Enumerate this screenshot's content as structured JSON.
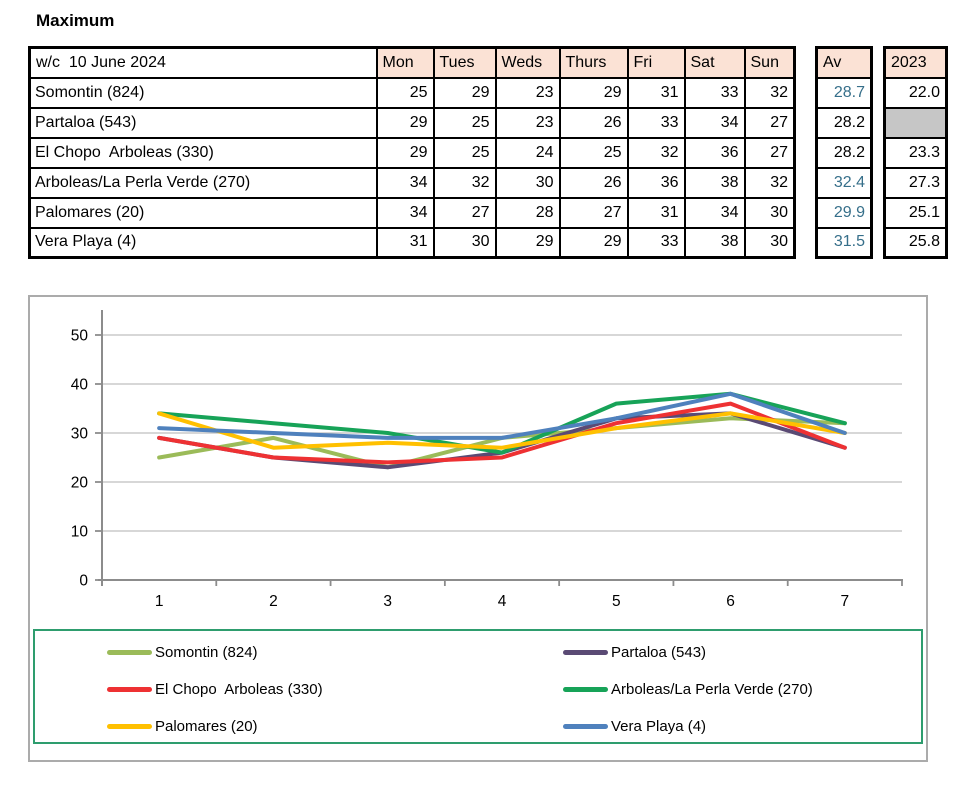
{
  "title": "Maximum",
  "table": {
    "header": {
      "week_label": "w/c  10 June 2024",
      "days": [
        "Mon",
        "Tues",
        "Weds",
        "Thurs",
        "Fri",
        "Sat",
        "Sun"
      ],
      "av_label": "Av",
      "prev_year_label": "2023"
    },
    "rows": [
      {
        "name": "Somontin (824)",
        "values": [
          25,
          29,
          23,
          29,
          31,
          33,
          32
        ],
        "av": "28.7",
        "av_teal": true,
        "prev": "22.0"
      },
      {
        "name": "Partaloa (543)",
        "values": [
          29,
          25,
          23,
          26,
          33,
          34,
          27
        ],
        "av": "28.2",
        "av_teal": false,
        "prev": null
      },
      {
        "name": "El Chopo  Arboleas (330)",
        "values": [
          29,
          25,
          24,
          25,
          32,
          36,
          27
        ],
        "av": "28.2",
        "av_teal": false,
        "prev": "23.3"
      },
      {
        "name": "Arboleas/La Perla Verde (270)",
        "values": [
          34,
          32,
          30,
          26,
          36,
          38,
          32
        ],
        "av": "32.4",
        "av_teal": true,
        "prev": "27.3"
      },
      {
        "name": "Palomares (20)",
        "values": [
          34,
          27,
          28,
          27,
          31,
          34,
          30
        ],
        "av": "29.9",
        "av_teal": true,
        "prev": "25.1"
      },
      {
        "name": "Vera Playa (4)",
        "values": [
          31,
          30,
          29,
          29,
          33,
          38,
          30
        ],
        "av": "31.5",
        "av_teal": true,
        "prev": "25.8"
      }
    ]
  },
  "chart_data": {
    "type": "line",
    "x": [
      1,
      2,
      3,
      4,
      5,
      6,
      7
    ],
    "xticklabels": [
      "1",
      "2",
      "3",
      "4",
      "5",
      "6",
      "7"
    ],
    "yticks": [
      0,
      10,
      20,
      30,
      40,
      50
    ],
    "ylim": [
      0,
      55
    ],
    "grid": true,
    "legend_position": "bottom",
    "title": "",
    "xlabel": "",
    "ylabel": "",
    "series": [
      {
        "name": "Somontin (824)",
        "color": "#9BBB59",
        "values": [
          25,
          29,
          23,
          29,
          31,
          33,
          32
        ]
      },
      {
        "name": "Partaloa (543)",
        "color": "#5A4A74",
        "values": [
          29,
          25,
          23,
          26,
          33,
          34,
          27
        ]
      },
      {
        "name": "El Chopo  Arboleas (330)",
        "color": "#EE3133",
        "values": [
          29,
          25,
          24,
          25,
          32,
          36,
          27
        ]
      },
      {
        "name": "Arboleas/La Perla Verde (270)",
        "color": "#17A358",
        "values": [
          34,
          32,
          30,
          26,
          36,
          38,
          32
        ]
      },
      {
        "name": "Palomares (20)",
        "color": "#FFC000",
        "values": [
          34,
          27,
          28,
          27,
          31,
          34,
          30
        ]
      },
      {
        "name": "Vera Playa (4)",
        "color": "#4F81BD",
        "values": [
          31,
          30,
          29,
          29,
          33,
          38,
          30
        ]
      }
    ]
  },
  "colors": {
    "header_fill": "#FBE2D5",
    "empty_cell_fill": "#C6C6C6",
    "avg_text": "#366F8A",
    "legend_border": "#2E9D6E",
    "chart_border": "#ABABAB",
    "grid_line": "#BFBFBF",
    "axis_line": "#8C8C8C"
  }
}
